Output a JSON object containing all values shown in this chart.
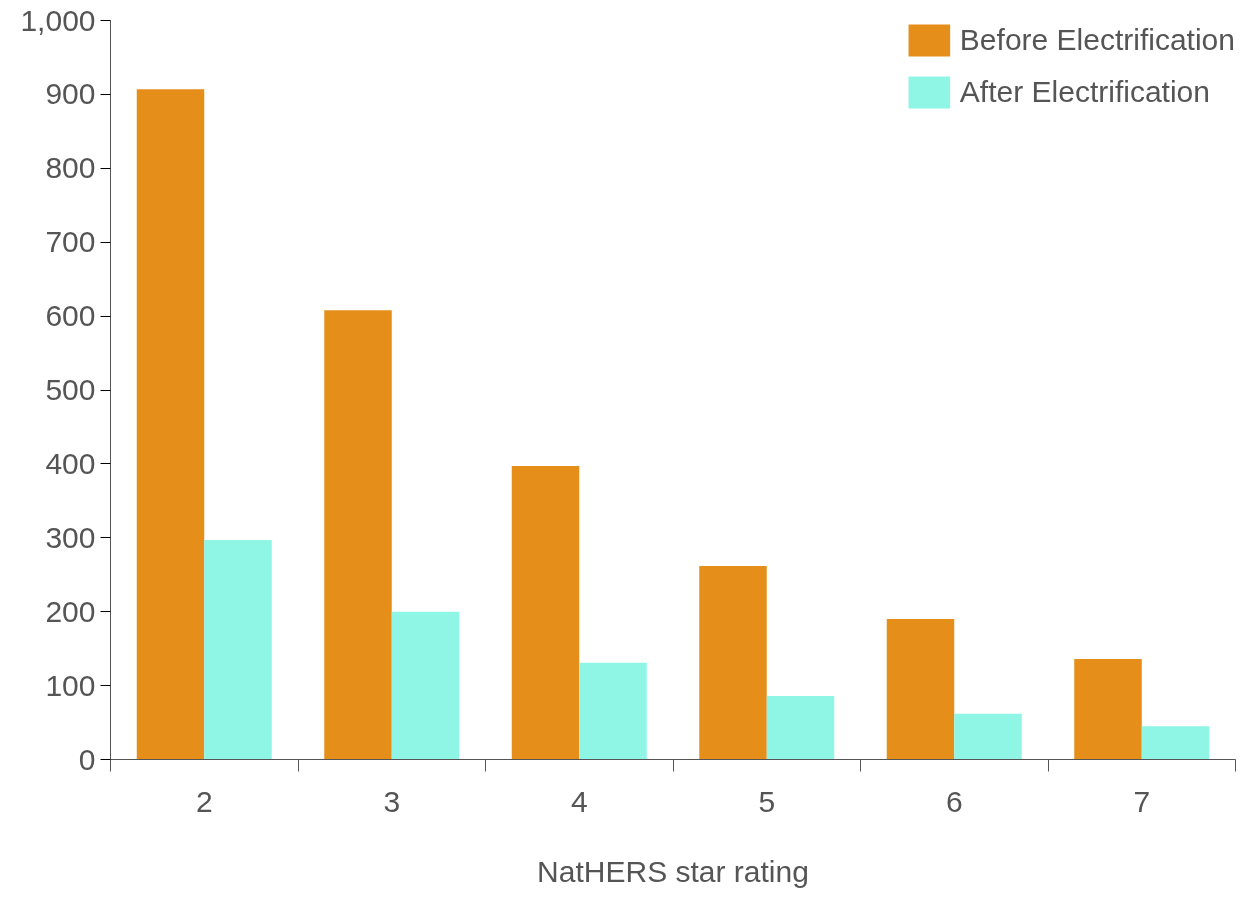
{
  "chart_data": {
    "type": "bar",
    "xlabel": "NatHERS star rating",
    "categories": [
      "2",
      "3",
      "4",
      "5",
      "6",
      "7"
    ],
    "series": [
      {
        "name": "Before Electrification",
        "color": "#e58e1a",
        "values": [
          907,
          608,
          397,
          262,
          190,
          136
        ]
      },
      {
        "name": "After Electrification",
        "color": "#8ff5e4",
        "values": [
          297,
          200,
          131,
          86,
          62,
          45
        ]
      }
    ],
    "ylim": [
      0,
      1000
    ],
    "yticks": [
      0,
      100,
      200,
      300,
      400,
      500,
      600,
      700,
      800,
      900,
      {
        "value": 1000,
        "label": "1,000"
      }
    ],
    "grid": false,
    "legend": "top right"
  }
}
